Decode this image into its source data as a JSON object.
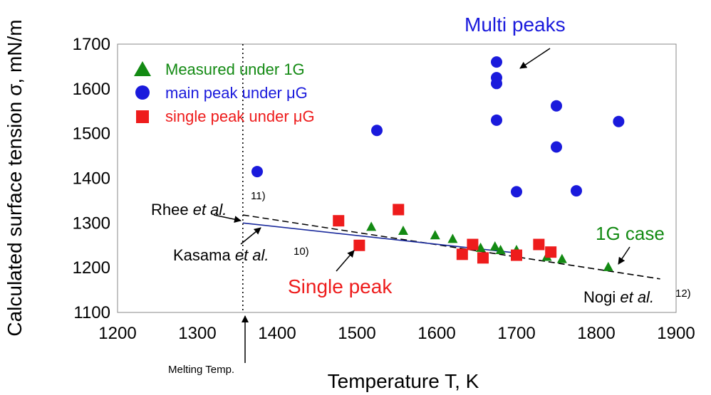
{
  "chart_data": {
    "type": "scatter",
    "title": "",
    "xlabel": "Temperature T, K",
    "ylabel": "Calculated surface tension σ, mN/m",
    "xlim": [
      1200,
      1900
    ],
    "ylim": [
      1100,
      1700
    ],
    "x_ticks": [
      "1200",
      "1300",
      "1400",
      "1500",
      "1600",
      "1700",
      "1800",
      "1900"
    ],
    "y_ticks": [
      "1100",
      "1200",
      "1300",
      "1400",
      "1500",
      "1600",
      "1700"
    ],
    "grid": false,
    "legend_position": "top-left",
    "series": [
      {
        "name": "Measured under 1G",
        "marker": "triangle",
        "color": "#138a13",
        "points": [
          [
            1518,
            1292
          ],
          [
            1558,
            1283
          ],
          [
            1598,
            1273
          ],
          [
            1620,
            1265
          ],
          [
            1655,
            1245
          ],
          [
            1673,
            1248
          ],
          [
            1680,
            1240
          ],
          [
            1700,
            1240
          ],
          [
            1738,
            1225
          ],
          [
            1757,
            1220
          ],
          [
            1815,
            1202
          ]
        ]
      },
      {
        "name": "main peak under μG",
        "marker": "circle",
        "color": "#1a1adc",
        "points": [
          [
            1375,
            1415
          ],
          [
            1525,
            1507
          ],
          [
            1675,
            1660
          ],
          [
            1675,
            1625
          ],
          [
            1675,
            1612
          ],
          [
            1675,
            1530
          ],
          [
            1700,
            1370
          ],
          [
            1750,
            1562
          ],
          [
            1750,
            1470
          ],
          [
            1775,
            1372
          ],
          [
            1828,
            1527
          ]
        ]
      },
      {
        "name": "single peak under μG",
        "marker": "square",
        "color": "#ee1c1c",
        "points": [
          [
            1477,
            1305
          ],
          [
            1503,
            1250
          ],
          [
            1552,
            1330
          ],
          [
            1632,
            1230
          ],
          [
            1645,
            1252
          ],
          [
            1658,
            1222
          ],
          [
            1700,
            1228
          ],
          [
            1728,
            1252
          ],
          [
            1743,
            1235
          ]
        ]
      }
    ],
    "reference_lines": [
      {
        "name": "Rhee et al.",
        "style": "dashed",
        "color": "#000000",
        "points": [
          [
            1357,
            1318
          ],
          [
            1880,
            1175
          ]
        ]
      },
      {
        "name": "Kasama et al.",
        "style": "solid",
        "color": "#1a2a9c",
        "points": [
          [
            1357,
            1300
          ],
          [
            1700,
            1233
          ]
        ]
      },
      {
        "name": "Melting Temp.",
        "style": "dotted",
        "color": "#000000",
        "x": 1357
      }
    ],
    "annotations": {
      "multi_peaks": "Multi peaks",
      "rhee": {
        "name": "Rhee ",
        "etal": "et al.",
        "ref": "11)"
      },
      "kasama": {
        "name": "Kasama ",
        "etal": "et al.",
        "ref": "10)"
      },
      "nogi": {
        "name": "Nogi ",
        "etal": "et al.",
        "ref": "12)"
      },
      "g1_case": "1G case",
      "single_peak": "Single peak",
      "melting_temp": "Melting Temp."
    }
  }
}
